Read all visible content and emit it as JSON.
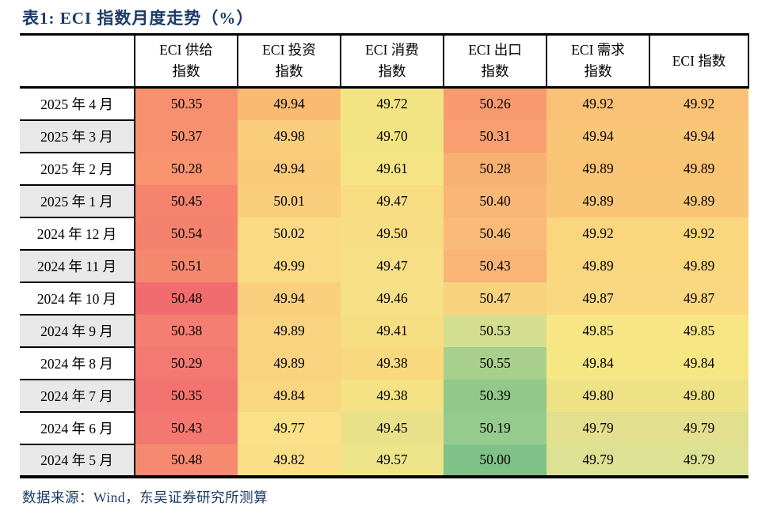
{
  "page": {
    "title": "表1:  ECI 指数月度走势（%）",
    "source_note": "数据来源：Wind，东吴证券研究所测算"
  },
  "chart_data": {
    "type": "table",
    "title": "表1: ECI 指数月度走势（%）",
    "unit": "%",
    "columns": [
      "ECI 供给指数",
      "ECI 投资指数",
      "ECI 消费指数",
      "ECI 出口指数",
      "ECI 需求指数",
      "ECI 指数"
    ],
    "row_labels": [
      "2025 年 4 月",
      "2025 年 3 月",
      "2025 年 2 月",
      "2025 年 1 月",
      "2024 年 12 月",
      "2024 年 11 月",
      "2024 年 10 月",
      "2024 年 9 月",
      "2024 年 8 月",
      "2024 年 7 月",
      "2024 年 6 月",
      "2024 年 5 月"
    ],
    "rows": [
      [
        50.35,
        49.94,
        49.72,
        50.26,
        49.92,
        49.92
      ],
      [
        50.37,
        49.98,
        49.7,
        50.31,
        49.94,
        49.94
      ],
      [
        50.28,
        49.94,
        49.61,
        50.28,
        49.89,
        49.89
      ],
      [
        50.45,
        50.01,
        49.47,
        50.4,
        49.89,
        49.89
      ],
      [
        50.54,
        50.02,
        49.5,
        50.46,
        49.92,
        49.92
      ],
      [
        50.51,
        49.99,
        49.47,
        50.43,
        49.89,
        49.89
      ],
      [
        50.48,
        49.94,
        49.46,
        50.47,
        49.87,
        49.87
      ],
      [
        50.38,
        49.89,
        49.41,
        50.53,
        49.85,
        49.85
      ],
      [
        50.29,
        49.89,
        49.38,
        50.55,
        49.84,
        49.84
      ],
      [
        50.35,
        49.84,
        49.38,
        50.39,
        49.8,
        49.8
      ],
      [
        50.43,
        49.77,
        49.45,
        50.19,
        49.79,
        49.79
      ],
      [
        50.48,
        49.82,
        49.57,
        50.0,
        49.79,
        49.79
      ]
    ],
    "source": "数据来源：Wind，东吴证券研究所测算",
    "legend_note": "cell backgrounds form a red-orange-yellow-green heatmap per cell"
  },
  "table": {
    "header": {
      "corner": "",
      "columns": [
        {
          "lines": [
            "ECI 供给",
            "指数"
          ]
        },
        {
          "lines": [
            "ECI 投资",
            "指数"
          ]
        },
        {
          "lines": [
            "ECI 消费",
            "指数"
          ]
        },
        {
          "lines": [
            "ECI 出口",
            "指数"
          ]
        },
        {
          "lines": [
            "ECI 需求",
            "指数"
          ]
        },
        {
          "lines": [
            "ECI 指数"
          ]
        }
      ]
    },
    "rows": [
      {
        "label": "2025 年 4 月",
        "cells": [
          {
            "v": "50.35",
            "bg": "#F7906F"
          },
          {
            "v": "49.94",
            "bg": "#F9BB72"
          },
          {
            "v": "49.72",
            "bg": "#F2E483"
          },
          {
            "v": "50.26",
            "bg": "#F79A6F"
          },
          {
            "v": "49.92",
            "bg": "#F9C276"
          },
          {
            "v": "49.92",
            "bg": "#F9C276"
          }
        ]
      },
      {
        "label": "2025 年 3 月",
        "cells": [
          {
            "v": "50.37",
            "bg": "#F7906F"
          },
          {
            "v": "49.98",
            "bg": "#FACD7D"
          },
          {
            "v": "49.70",
            "bg": "#F2E483"
          },
          {
            "v": "50.31",
            "bg": "#F89E71"
          },
          {
            "v": "49.94",
            "bg": "#F9C577"
          },
          {
            "v": "49.94",
            "bg": "#F9C577"
          }
        ]
      },
      {
        "label": "2025 年 2 月",
        "cells": [
          {
            "v": "50.28",
            "bg": "#F8946F"
          },
          {
            "v": "49.94",
            "bg": "#FACA7B"
          },
          {
            "v": "49.61",
            "bg": "#F5E484"
          },
          {
            "v": "50.28",
            "bg": "#F9B173"
          },
          {
            "v": "49.89",
            "bg": "#F9C475"
          },
          {
            "v": "49.89",
            "bg": "#F9C475"
          }
        ]
      },
      {
        "label": "2025 年 1 月",
        "cells": [
          {
            "v": "50.45",
            "bg": "#F5836E"
          },
          {
            "v": "50.01",
            "bg": "#FACD7D"
          },
          {
            "v": "49.47",
            "bg": "#F8DC82"
          },
          {
            "v": "50.40",
            "bg": "#F9B677"
          },
          {
            "v": "49.89",
            "bg": "#F9C678"
          },
          {
            "v": "49.89",
            "bg": "#F9C678"
          }
        ]
      },
      {
        "label": "2024 年 12 月",
        "cells": [
          {
            "v": "50.54",
            "bg": "#F5826E"
          },
          {
            "v": "50.02",
            "bg": "#FADA84"
          },
          {
            "v": "49.50",
            "bg": "#F7DE84"
          },
          {
            "v": "50.46",
            "bg": "#FABB79"
          },
          {
            "v": "49.92",
            "bg": "#FAD77F"
          },
          {
            "v": "49.92",
            "bg": "#FAD77F"
          }
        ]
      },
      {
        "label": "2024 年 11 月",
        "cells": [
          {
            "v": "50.51",
            "bg": "#F6876F"
          },
          {
            "v": "49.99",
            "bg": "#FADA84"
          },
          {
            "v": "49.47",
            "bg": "#F6DF85"
          },
          {
            "v": "50.43",
            "bg": "#F9B476"
          },
          {
            "v": "49.89",
            "bg": "#FAD77F"
          },
          {
            "v": "49.89",
            "bg": "#FAD77F"
          }
        ]
      },
      {
        "label": "2024 年 10 月",
        "cells": [
          {
            "v": "50.48",
            "bg": "#F16C6E"
          },
          {
            "v": "49.94",
            "bg": "#FAD07F"
          },
          {
            "v": "49.46",
            "bg": "#F5E085"
          },
          {
            "v": "50.47",
            "bg": "#F9D27F"
          },
          {
            "v": "49.87",
            "bg": "#FAD781"
          },
          {
            "v": "49.87",
            "bg": "#FAD781"
          }
        ]
      },
      {
        "label": "2024 年 9 月",
        "cells": [
          {
            "v": "50.38",
            "bg": "#F47E72"
          },
          {
            "v": "49.89",
            "bg": "#FAD381"
          },
          {
            "v": "49.41",
            "bg": "#F6DE83"
          },
          {
            "v": "50.53",
            "bg": "#D4DE90"
          },
          {
            "v": "49.85",
            "bg": "#F8E685"
          },
          {
            "v": "49.85",
            "bg": "#F8E685"
          }
        ]
      },
      {
        "label": "2024 年 8 月",
        "cells": [
          {
            "v": "50.29",
            "bg": "#F37A73"
          },
          {
            "v": "49.89",
            "bg": "#FAD381"
          },
          {
            "v": "49.38",
            "bg": "#F8D980"
          },
          {
            "v": "50.55",
            "bg": "#A9CF8D"
          },
          {
            "v": "49.84",
            "bg": "#F7E684"
          },
          {
            "v": "49.84",
            "bg": "#F7E684"
          }
        ]
      },
      {
        "label": "2024 年 7 月",
        "cells": [
          {
            "v": "50.35",
            "bg": "#F27370"
          },
          {
            "v": "49.84",
            "bg": "#F9D680"
          },
          {
            "v": "49.38",
            "bg": "#F4E284"
          },
          {
            "v": "50.39",
            "bg": "#92C98B"
          },
          {
            "v": "49.80",
            "bg": "#EEE287"
          },
          {
            "v": "49.80",
            "bg": "#EEE287"
          }
        ]
      },
      {
        "label": "2024 年 6 月",
        "cells": [
          {
            "v": "50.43",
            "bg": "#F37871"
          },
          {
            "v": "49.77",
            "bg": "#F9E089"
          },
          {
            "v": "49.45",
            "bg": "#E9E18A"
          },
          {
            "v": "50.19",
            "bg": "#95CB8C"
          },
          {
            "v": "49.79",
            "bg": "#E2DF8E"
          },
          {
            "v": "49.79",
            "bg": "#E2DF8E"
          }
        ]
      },
      {
        "label": "2024 年 5 月",
        "cells": [
          {
            "v": "50.48",
            "bg": "#F68A70"
          },
          {
            "v": "49.82",
            "bg": "#F9DF88"
          },
          {
            "v": "49.57",
            "bg": "#EDE389"
          },
          {
            "v": "50.00",
            "bg": "#7FC189"
          },
          {
            "v": "49.79",
            "bg": "#DCE294"
          },
          {
            "v": "49.79",
            "bg": "#DCE294"
          }
        ]
      }
    ]
  },
  "colors": {
    "title_text": "#1B3A68",
    "source_text": "#1B3A68",
    "border": "#000000",
    "row_label_alt_bg": "#E8E8E8",
    "cell_text": "#000000"
  }
}
